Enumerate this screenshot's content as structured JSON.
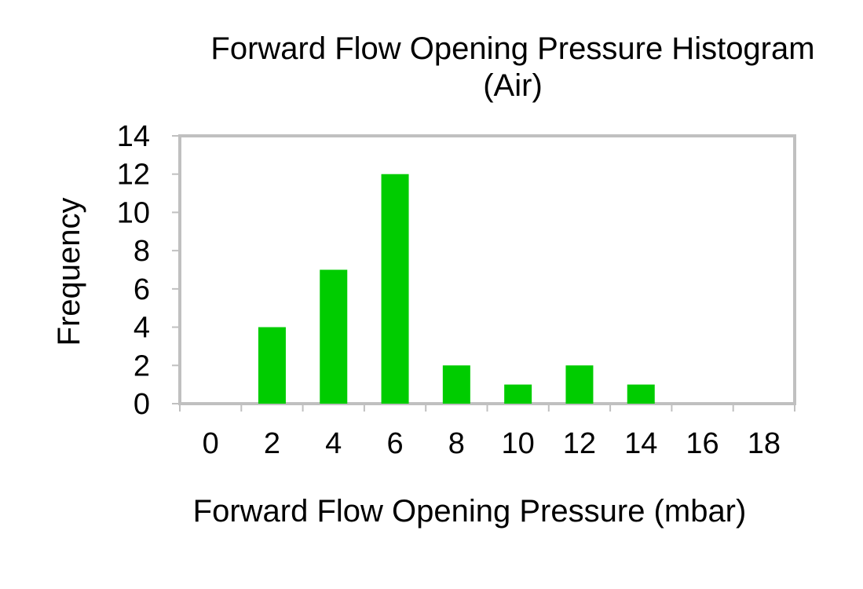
{
  "chart_data": {
    "type": "bar",
    "title": "Forward Flow Opening Pressure Histogram",
    "subtitle": "(Air)",
    "xlabel": "Forward Flow Opening Pressure (mbar)",
    "ylabel": "Frequency",
    "categories": [
      "0",
      "2",
      "4",
      "6",
      "8",
      "10",
      "12",
      "14",
      "16",
      "18"
    ],
    "values": [
      0,
      4,
      7,
      12,
      2,
      1,
      2,
      1,
      0,
      0
    ],
    "ylim": [
      0,
      14
    ],
    "yticks": [
      "0",
      "2",
      "4",
      "6",
      "8",
      "10",
      "12",
      "14"
    ],
    "grid": false,
    "legend": "none",
    "bar_color": "#00cc00",
    "frame_color": "#c0c0c0"
  }
}
